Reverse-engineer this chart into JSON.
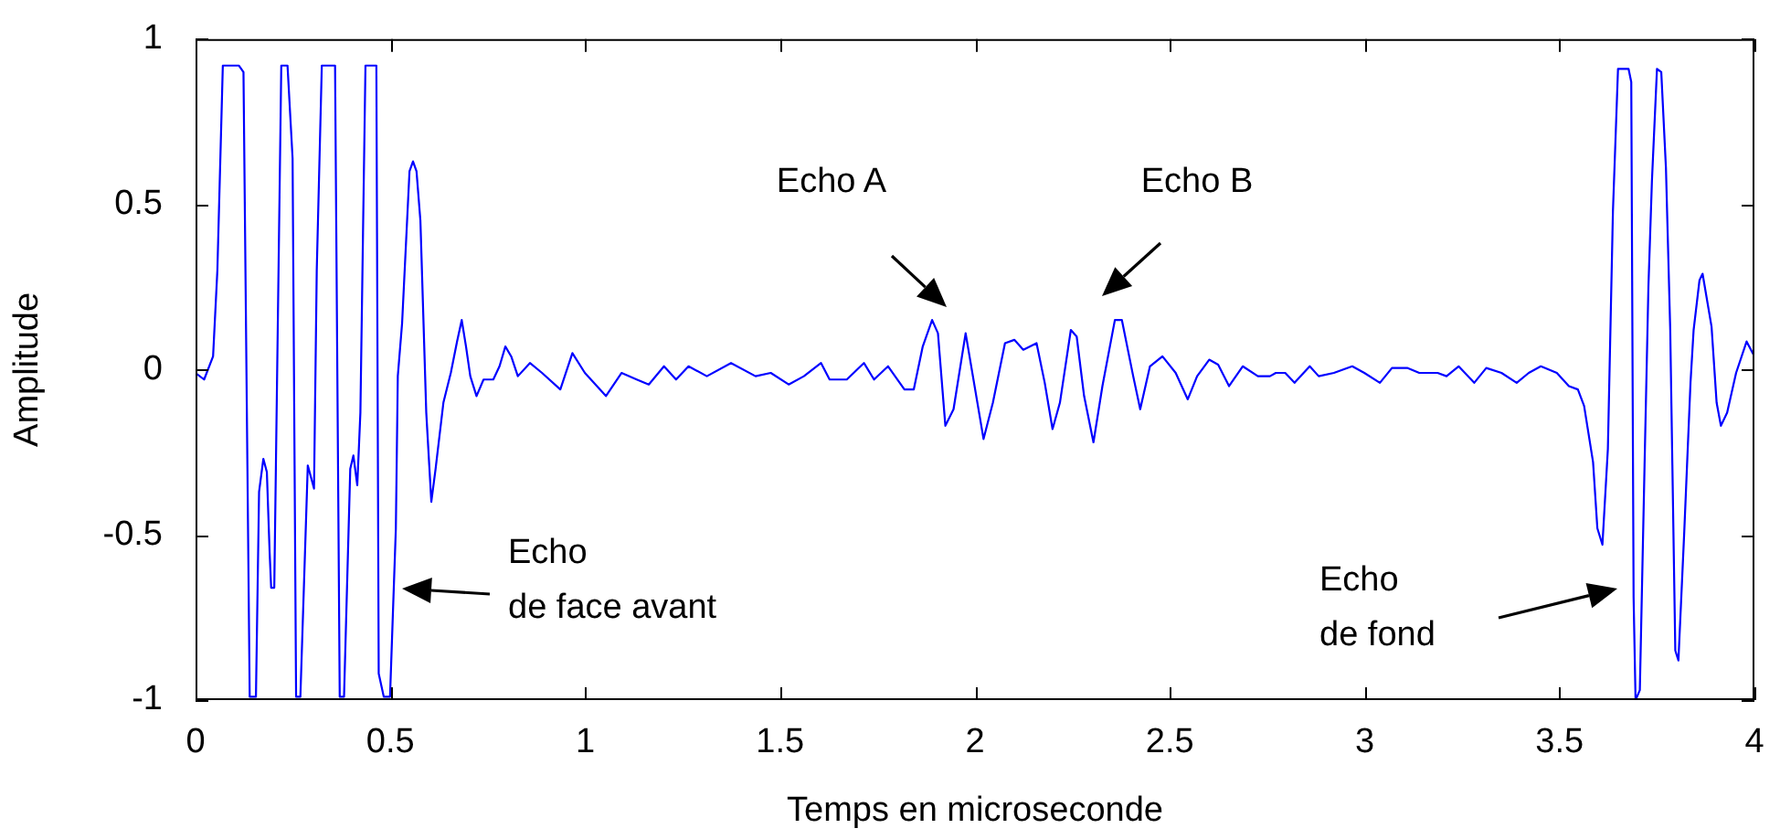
{
  "chart_data": {
    "type": "line",
    "xlabel": "Temps en microseconde",
    "ylabel": "Amplitude",
    "color": "#0000ff",
    "grid": false,
    "legend": false,
    "x": [
      0,
      0.022,
      0.045,
      0.056,
      0.07,
      0.111,
      0.123,
      0.139,
      0.155,
      0.163,
      0.174,
      0.183,
      0.19,
      0.194,
      0.202,
      0.22,
      0.236,
      0.249,
      0.258,
      0.269,
      0.288,
      0.304,
      0.311,
      0.324,
      0.358,
      0.37,
      0.381,
      0.397,
      0.405,
      0.415,
      0.423,
      0.436,
      0.464,
      0.47,
      0.483,
      0.499,
      0.514,
      0.519,
      0.53,
      0.549,
      0.558,
      0.567,
      0.577,
      0.592,
      0.605,
      0.616,
      0.636,
      0.655,
      0.671,
      0.683,
      0.694,
      0.705,
      0.721,
      0.739,
      0.764,
      0.78,
      0.795,
      0.81,
      0.827,
      0.858,
      0.889,
      0.936,
      0.967,
      0.999,
      1.053,
      1.093,
      1.132,
      1.163,
      1.202,
      1.233,
      1.265,
      1.312,
      1.374,
      1.437,
      1.476,
      1.522,
      1.561,
      1.605,
      1.627,
      1.671,
      1.715,
      1.741,
      1.777,
      1.819,
      1.843,
      1.866,
      1.89,
      1.905,
      1.924,
      1.945,
      1.976,
      2.022,
      2.046,
      2.077,
      2.101,
      2.124,
      2.158,
      2.179,
      2.199,
      2.218,
      2.246,
      2.261,
      2.28,
      2.304,
      2.327,
      2.359,
      2.377,
      2.406,
      2.424,
      2.449,
      2.481,
      2.515,
      2.546,
      2.57,
      2.601,
      2.624,
      2.652,
      2.687,
      2.726,
      2.757,
      2.772,
      2.796,
      2.82,
      2.859,
      2.882,
      2.921,
      2.968,
      2.999,
      3.039,
      3.07,
      3.109,
      3.14,
      3.187,
      3.21,
      3.241,
      3.281,
      3.312,
      3.351,
      3.39,
      3.421,
      3.452,
      3.493,
      3.524,
      3.547,
      3.563,
      3.586,
      3.597,
      3.61,
      3.624,
      3.637,
      3.65,
      3.677,
      3.684,
      3.69,
      3.695,
      3.706,
      3.719,
      3.728,
      3.737,
      3.75,
      3.761,
      3.773,
      3.784,
      3.797,
      3.805,
      3.82,
      3.836,
      3.844,
      3.859,
      3.867,
      3.89,
      3.903,
      3.914,
      3.93,
      3.953,
      3.98,
      4.0
    ],
    "values": [
      -0.01,
      -0.03,
      0.04,
      0.3,
      0.92,
      0.92,
      0.9,
      -0.99,
      -0.99,
      -0.37,
      -0.27,
      -0.31,
      -0.55,
      -0.66,
      -0.66,
      0.92,
      0.92,
      0.64,
      -0.99,
      -0.99,
      -0.29,
      -0.36,
      0.3,
      0.92,
      0.92,
      -0.99,
      -0.99,
      -0.3,
      -0.26,
      -0.35,
      -0.13,
      0.92,
      0.92,
      -0.92,
      -0.99,
      -0.99,
      -0.48,
      -0.02,
      0.14,
      0.6,
      0.63,
      0.6,
      0.45,
      -0.13,
      -0.4,
      -0.3,
      -0.1,
      -0.01,
      0.085,
      0.15,
      0.07,
      -0.02,
      -0.08,
      -0.03,
      -0.03,
      0.01,
      0.07,
      0.04,
      -0.02,
      0.02,
      -0.01,
      -0.06,
      0.05,
      -0.01,
      -0.08,
      -0.01,
      -0.03,
      -0.045,
      0.01,
      -0.03,
      0.01,
      -0.02,
      0.02,
      -0.02,
      -0.01,
      -0.045,
      -0.02,
      0.02,
      -0.03,
      -0.03,
      0.02,
      -0.03,
      0.01,
      -0.06,
      -0.06,
      0.07,
      0.15,
      0.11,
      -0.17,
      -0.12,
      0.11,
      -0.21,
      -0.1,
      0.08,
      0.09,
      0.06,
      0.08,
      -0.04,
      -0.18,
      -0.1,
      0.12,
      0.1,
      -0.08,
      -0.22,
      -0.05,
      0.15,
      0.15,
      -0.02,
      -0.12,
      0.01,
      0.04,
      -0.01,
      -0.09,
      -0.02,
      0.03,
      0.015,
      -0.05,
      0.01,
      -0.02,
      -0.02,
      -0.01,
      -0.01,
      -0.04,
      0.01,
      -0.02,
      -0.01,
      0.01,
      -0.01,
      -0.04,
      0.005,
      0.005,
      -0.01,
      -0.01,
      -0.02,
      0.01,
      -0.04,
      0.005,
      -0.01,
      -0.04,
      -0.01,
      0.01,
      -0.01,
      -0.05,
      -0.06,
      -0.11,
      -0.28,
      -0.48,
      -0.53,
      -0.24,
      0.48,
      0.91,
      0.91,
      0.87,
      -0.69,
      -1.0,
      -0.97,
      -0.24,
      0.25,
      0.57,
      0.91,
      0.9,
      0.61,
      0.12,
      -0.85,
      -0.88,
      -0.49,
      -0.04,
      0.12,
      0.27,
      0.29,
      0.13,
      -0.1,
      -0.17,
      -0.13,
      -0.01,
      0.085,
      0.04
    ],
    "xlim": [
      0,
      4
    ],
    "ylim": [
      -1,
      1
    ],
    "xticks": [
      0,
      0.5,
      1,
      1.5,
      2,
      2.5,
      3,
      3.5,
      4
    ],
    "yticks": [
      -1,
      -0.5,
      0,
      0.5,
      1
    ],
    "annotations": [
      "Echo A",
      "Echo B",
      "Echo\nde face avant",
      "Echo\nde fond"
    ]
  }
}
